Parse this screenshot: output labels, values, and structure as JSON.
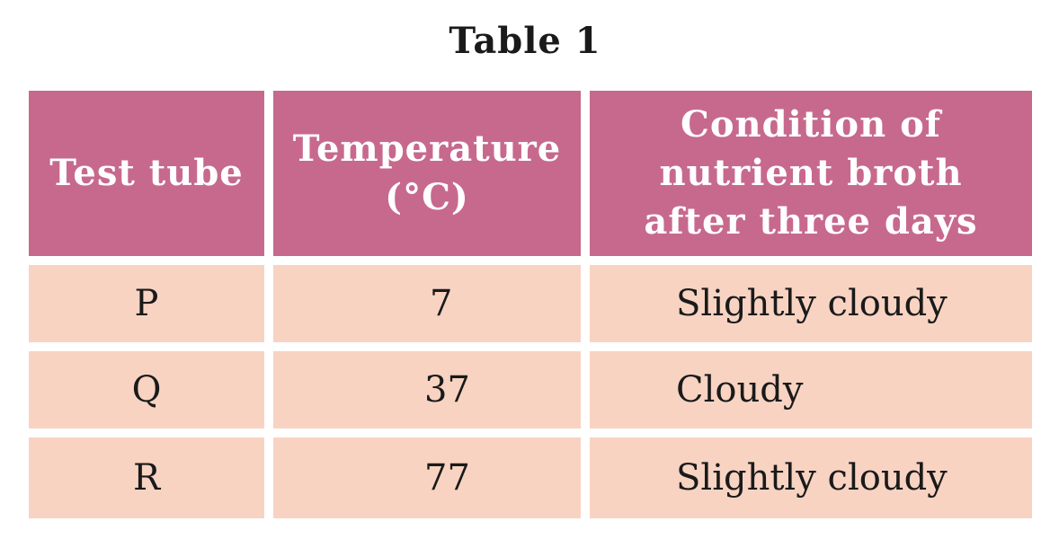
{
  "title": "Table 1",
  "table": {
    "headers": [
      "Test tube",
      "Temperature\n(°C)",
      "Condition of\nnutrient broth\nafter three days"
    ],
    "rows": [
      [
        "P",
        "7",
        "Slightly cloudy"
      ],
      [
        "Q",
        "37",
        "Cloudy"
      ],
      [
        "R",
        "77",
        "Slightly cloudy"
      ]
    ]
  },
  "colors": {
    "header_background": "#c7698d",
    "body_background": "#f8d3c2",
    "header_text": "#ffffff",
    "body_text": "#1a1a1a"
  }
}
